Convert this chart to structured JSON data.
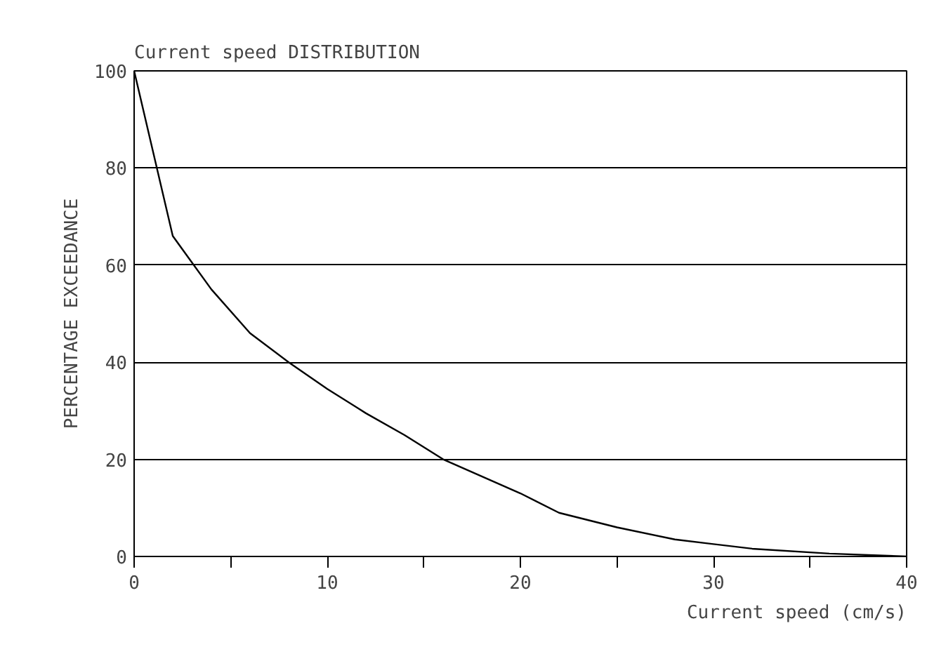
{
  "chart_data": {
    "type": "line",
    "title": "Current speed DISTRIBUTION",
    "xlabel": "Current speed (cm/s)",
    "ylabel": "PERCENTAGE EXCEEDANCE",
    "x": [
      0,
      2,
      4,
      6,
      8,
      10,
      12,
      14,
      16,
      18,
      20,
      22,
      25,
      28,
      32,
      36,
      40
    ],
    "series": [
      {
        "color": "#000000",
        "values": [
          100,
          66,
          55,
          46,
          40,
          34.5,
          29.5,
          25,
          20,
          16.5,
          13,
          9,
          6,
          3.5,
          1.6,
          0.6,
          0
        ]
      }
    ],
    "xlim": [
      0,
      40
    ],
    "ylim": [
      0,
      100
    ],
    "xticks": [
      0,
      {
        "value": 5,
        "label": null
      },
      10,
      {
        "value": 15,
        "label": null
      },
      20,
      {
        "value": 25,
        "label": null
      },
      30,
      {
        "value": 35,
        "label": null
      },
      40
    ],
    "yticks": [
      0,
      20,
      40,
      60,
      80,
      100
    ],
    "grid": "y",
    "marker": "none",
    "line_style": "solid"
  }
}
